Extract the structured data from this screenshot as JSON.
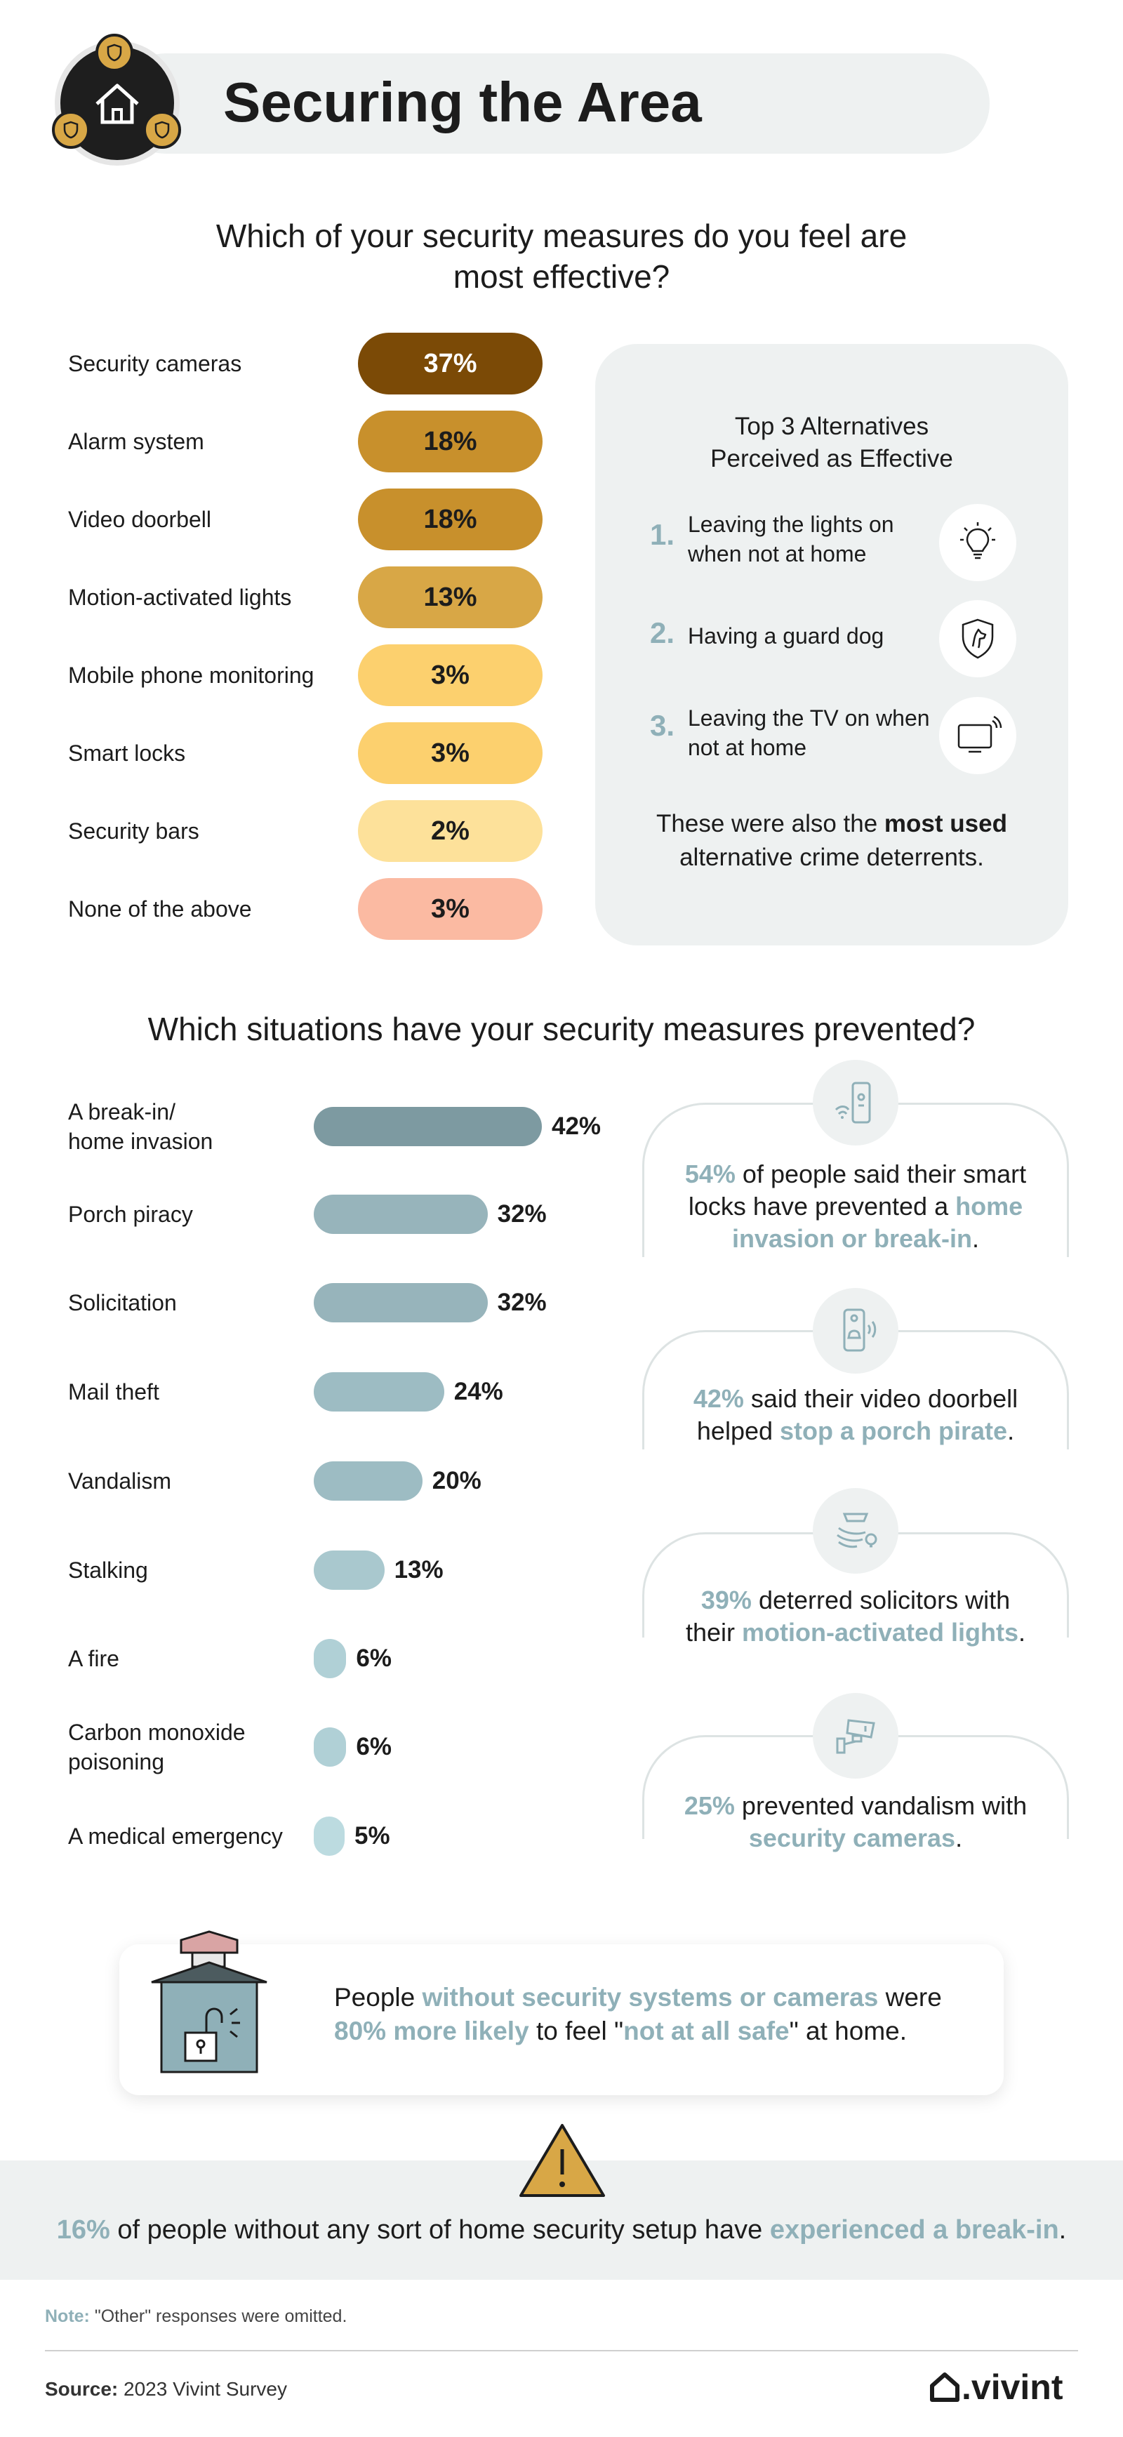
{
  "header": {
    "title": "Securing the Area"
  },
  "section1": {
    "question": "Which of your security measures do you feel are most effective?"
  },
  "alternatives": {
    "title": "Top 3 Alternatives Perceived as Effective",
    "items": [
      {
        "num": "1.",
        "text": "Leaving the lights on when not at home",
        "icon": "lightbulb-icon"
      },
      {
        "num": "2.",
        "text": "Having a guard dog",
        "icon": "dog-shield-icon"
      },
      {
        "num": "3.",
        "text": "Leaving the TV on when not at home",
        "icon": "tv-icon"
      }
    ],
    "footer_pre": "These were also the ",
    "footer_bold": "most used",
    "footer_post": " alternative crime deterrents."
  },
  "section2": {
    "question": "Which situations have your security measures prevented?"
  },
  "cards": [
    {
      "icon": "smart-lock-icon",
      "pre": "",
      "h1": "54%",
      "mid": " of people said their smart locks have prevented a ",
      "h2": "home invasion or break-in",
      "post": "."
    },
    {
      "icon": "video-doorbell-icon",
      "pre": "",
      "h1": "42%",
      "mid": " said their video doorbell helped ",
      "h2": "stop a porch pirate",
      "post": "."
    },
    {
      "icon": "motion-light-icon",
      "pre": "",
      "h1": "39%",
      "mid": " deterred solicitors with their ",
      "h2": "motion-activated lights",
      "post": "."
    },
    {
      "icon": "security-camera-icon",
      "pre": "",
      "h1": "25%",
      "mid": " prevented vandalism with ",
      "h2": "security cameras",
      "post": "."
    }
  ],
  "callout": {
    "t1": "People ",
    "h1": "without security systems or cameras",
    "t2": " were ",
    "h2": "80% more likely",
    "t3": " to feel \"",
    "h3": "not at all safe",
    "t4": "\" at home."
  },
  "band": {
    "h1": "16%",
    "t1": " of people without any sort of home security setup have ",
    "h2": "experienced a break-in",
    "t2": "."
  },
  "note": {
    "label": "Note:",
    "text": " \"Other\" responses were omitted."
  },
  "source": {
    "label": "Source:",
    "text": " 2023 Vivint Survey"
  },
  "brand": {
    "name": ".vivint"
  },
  "colors": {
    "teal": "#8fb0b8",
    "panel": "#eef1f1",
    "dark_brown": "#7b4a06",
    "gold": "#c8902c",
    "mid_gold": "#d8a746",
    "light_gold": "#fcd06e",
    "pale_gold": "#fde19a",
    "salmon": "#fbbaa2"
  },
  "chart_data": [
    {
      "type": "bar",
      "title": "Which of your security measures do you feel are most effective?",
      "categories": [
        "Security cameras",
        "Alarm system",
        "Video doorbell",
        "Motion-activated lights",
        "Mobile phone monitoring",
        "Smart locks",
        "Security bars",
        "None of the above"
      ],
      "values": [
        37,
        18,
        18,
        13,
        3,
        3,
        2,
        3
      ],
      "labels": [
        "37%",
        "18%",
        "18%",
        "13%",
        "3%",
        "3%",
        "2%",
        "3%"
      ],
      "colors": [
        "#7b4a06",
        "#c8902c",
        "#c8902c",
        "#d8a746",
        "#fcd06e",
        "#fcd06e",
        "#fde19a",
        "#fbbaa2"
      ],
      "text_colors": [
        "#ffffff",
        "#1c1c1c",
        "#1c1c1c",
        "#1c1c1c",
        "#1c1c1c",
        "#1c1c1c",
        "#1c1c1c",
        "#1c1c1c"
      ],
      "unit": "%"
    },
    {
      "type": "bar",
      "title": "Which situations have your security measures prevented?",
      "categories": [
        "A break-in/ home invasion",
        "Porch piracy",
        "Solicitation",
        "Mail theft",
        "Vandalism",
        "Stalking",
        "A fire",
        "Carbon monoxide poisoning",
        "A medical emergency"
      ],
      "values": [
        42,
        32,
        32,
        24,
        20,
        13,
        6,
        6,
        5
      ],
      "labels": [
        "42%",
        "32%",
        "32%",
        "24%",
        "20%",
        "13%",
        "6%",
        "6%",
        "5%"
      ],
      "colors": [
        "#7d9aa1",
        "#97b4bb",
        "#97b4bb",
        "#9dbcc3",
        "#9dbcc3",
        "#a9c8ce",
        "#b0d0d6",
        "#b0d0d6",
        "#bcdbe0"
      ],
      "xlim": [
        0,
        42
      ],
      "unit": "%"
    }
  ]
}
